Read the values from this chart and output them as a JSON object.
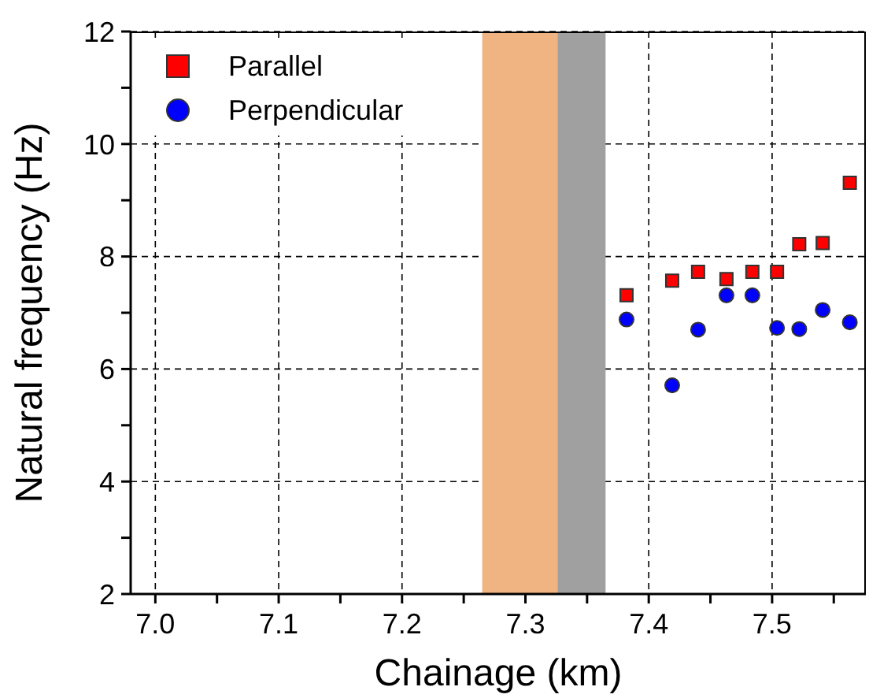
{
  "chart_data": {
    "type": "scatter",
    "xlabel": "Chainage (km)",
    "ylabel": "Natural frequency (Hz)",
    "xlim": [
      6.98,
      7.576
    ],
    "ylim": [
      2,
      12
    ],
    "xticks": [
      {
        "value": 7.0,
        "label": "7.0"
      },
      {
        "value": 7.05,
        "label": null
      },
      {
        "value": 7.1,
        "label": "7.1"
      },
      {
        "value": 7.15,
        "label": null
      },
      {
        "value": 7.2,
        "label": "7.2"
      },
      {
        "value": 7.25,
        "label": null
      },
      {
        "value": 7.3,
        "label": "7.3"
      },
      {
        "value": 7.35,
        "label": null
      },
      {
        "value": 7.4,
        "label": "7.4"
      },
      {
        "value": 7.45,
        "label": null
      },
      {
        "value": 7.5,
        "label": "7.5"
      },
      {
        "value": 7.55,
        "label": null
      }
    ],
    "yticks": [
      2,
      {
        "value": 3,
        "label": null
      },
      4,
      {
        "value": 5,
        "label": null
      },
      6,
      {
        "value": 7,
        "label": null
      },
      8,
      {
        "value": 9,
        "label": null
      },
      10,
      {
        "value": 11,
        "label": null
      },
      12
    ],
    "grid": true,
    "legend": "top left",
    "bands": [
      {
        "axis": "x",
        "from": 7.265,
        "to": 7.326,
        "color": "#f0b482"
      },
      {
        "axis": "x",
        "from": 7.326,
        "to": 7.365,
        "color": "#a0a0a0"
      }
    ],
    "series": [
      {
        "name": "Parallel",
        "color": "#ff0000",
        "marker": "square",
        "x": [
          7.382,
          7.419,
          7.44,
          7.463,
          7.484,
          7.504,
          7.522,
          7.541,
          7.563
        ],
        "values": [
          7.31,
          7.57,
          7.73,
          7.6,
          7.73,
          7.73,
          8.22,
          8.24,
          9.31
        ]
      },
      {
        "name": "Perpendicular",
        "color": "#0000ff",
        "marker": "circle",
        "x": [
          7.382,
          7.419,
          7.44,
          7.463,
          7.484,
          7.504,
          7.522,
          7.541,
          7.563
        ],
        "values": [
          6.88,
          5.71,
          6.7,
          7.31,
          7.31,
          6.73,
          6.71,
          7.05,
          6.83
        ]
      }
    ]
  }
}
